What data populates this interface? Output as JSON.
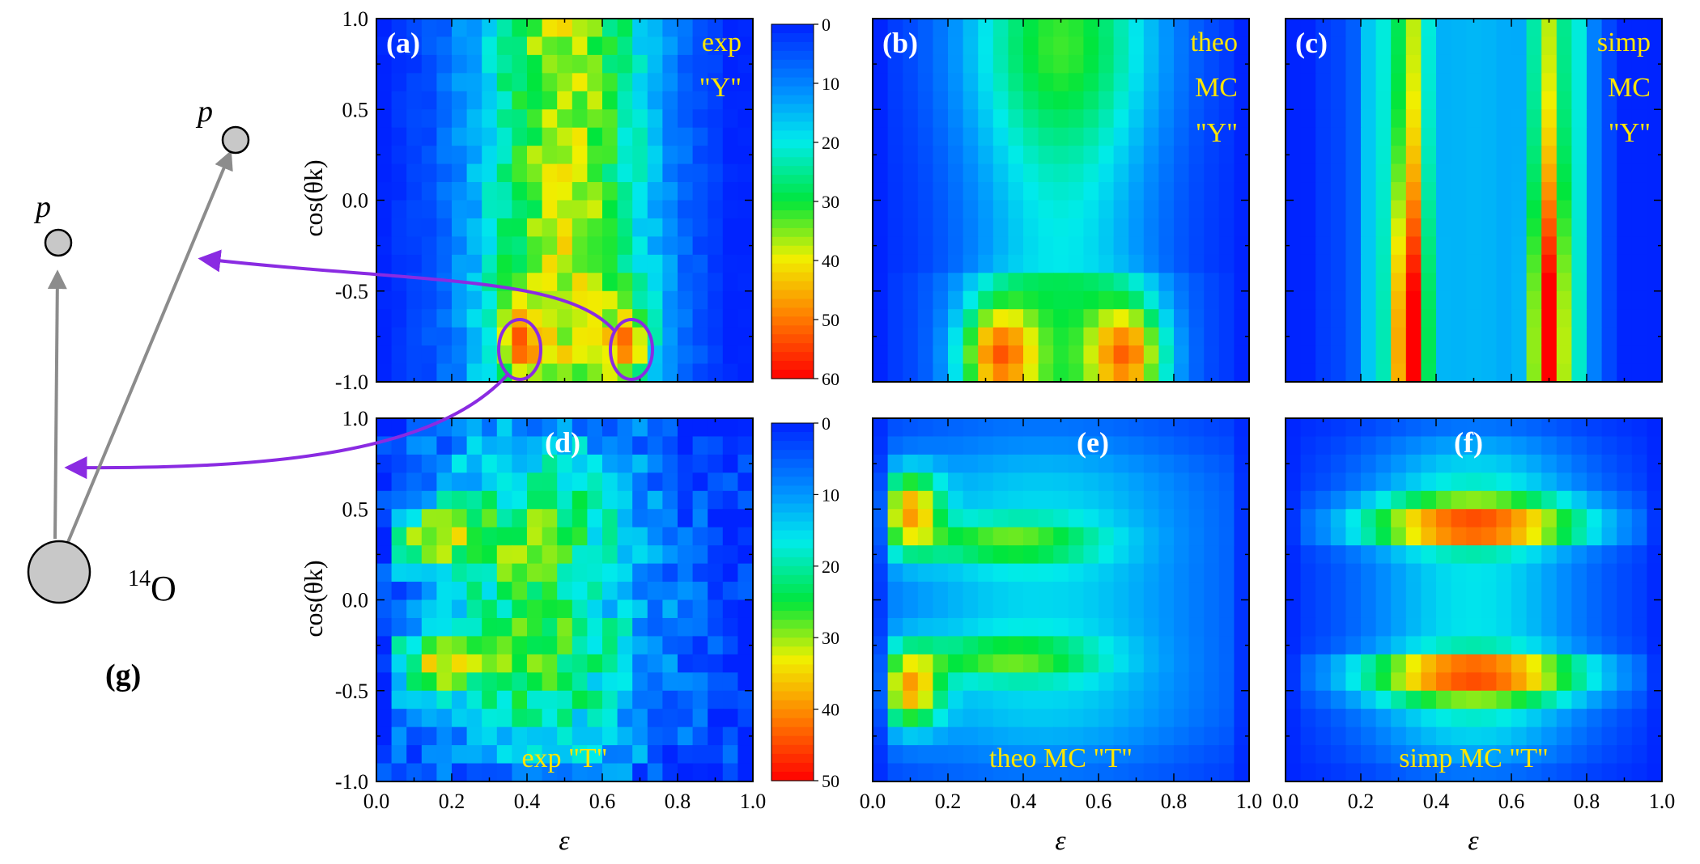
{
  "chart_data": {
    "type": "heatmap",
    "x_label": "ε",
    "y_label": "cos(θk)",
    "x_ticks": [
      "0.0",
      "0.2",
      "0.4",
      "0.6",
      "0.8",
      "1.0"
    ],
    "y_ticks": [
      "1.0",
      "0.5",
      "0.0",
      "-0.5",
      "-1.0"
    ],
    "xlim": [
      0,
      1
    ],
    "ylim": [
      -1,
      1
    ],
    "grid": {
      "nx": 25,
      "ny": 20
    },
    "colorbars": [
      {
        "id": "top",
        "ticks": [
          "0",
          "10",
          "20",
          "30",
          "40",
          "50",
          "60"
        ],
        "range": [
          0,
          60
        ]
      },
      {
        "id": "bottom",
        "ticks": [
          "0",
          "10",
          "20",
          "30",
          "40",
          "50"
        ],
        "range": [
          0,
          50
        ]
      }
    ],
    "panels": [
      {
        "id": "a",
        "letter": "(a)",
        "tags": [
          "exp",
          "\"Y\""
        ],
        "tag_align": "right-top",
        "model": "exp_Y",
        "vmax": 60
      },
      {
        "id": "b",
        "letter": "(b)",
        "tags": [
          "theo",
          "MC",
          "\"Y\""
        ],
        "tag_align": "right-top",
        "model": "theo_Y",
        "vmax": 60
      },
      {
        "id": "c",
        "letter": "(c)",
        "tags": [
          "simp",
          "MC",
          "\"Y\""
        ],
        "tag_align": "right-top",
        "model": "simp_Y",
        "vmax": 60
      },
      {
        "id": "d",
        "letter": "(d)",
        "tags": [
          "exp  \"T\""
        ],
        "tag_align": "bottom-center",
        "model": "exp_T",
        "vmax": 50
      },
      {
        "id": "e",
        "letter": "(e)",
        "tags": [
          "theo MC  \"T\""
        ],
        "tag_align": "bottom-center",
        "model": "theo_T",
        "vmax": 50
      },
      {
        "id": "f",
        "letter": "(f)",
        "tags": [
          "simp MC \"T\""
        ],
        "tag_align": "bottom-center",
        "model": "simp_T",
        "vmax": 50
      }
    ],
    "highlights": [
      {
        "panel": "a",
        "eps": 0.38,
        "cos": -0.8,
        "note": "circled peak"
      },
      {
        "panel": "a",
        "eps": 0.67,
        "cos": -0.8,
        "note": "circled peak"
      }
    ]
  },
  "diagram": {
    "proton_label": "p",
    "nucleus_label_mass": "14",
    "nucleus_label_symbol": "O",
    "panel_label": "(g)"
  },
  "colors": {
    "arrow": "#8a2be2",
    "vector": "#8c8c8c",
    "particle_fill": "#c8c8c8"
  }
}
